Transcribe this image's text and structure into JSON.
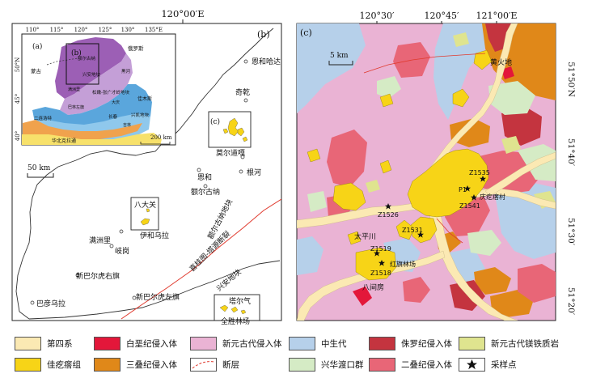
{
  "panel_b": {
    "panel_label": "(b)",
    "top_lon": "120°00′E",
    "scale_label": "50 km",
    "places": [
      "恩和哈达",
      "奇乾",
      "莫尔道嘎",
      "恩和",
      "根河",
      "额尔古纳",
      "八大关",
      "伊和乌拉",
      "满洲里",
      "岐岗",
      "新巴尔虎右旗",
      "新巴尔虎左旗",
      "巴彦乌拉",
      "塔尔气",
      "全胜林场"
    ],
    "c_box_label": "(c)",
    "blocks": [
      "额尔古纳地块",
      "兴安地块"
    ],
    "fault_name": "喜桂图-塔源断裂"
  },
  "inset_a": {
    "panel_label": "(a)",
    "b_box_label": "(b)",
    "top_ticks": [
      "110°",
      "115°",
      "120°",
      "125°",
      "130°",
      "135°E"
    ],
    "left_ticks": [
      "50°N",
      "45°",
      "40°"
    ],
    "regions": [
      "俄罗斯",
      "蒙古",
      "额尔古纳",
      "兴安地块",
      "松嫩-张广才岭地块",
      "佳木斯",
      "兴凯地块",
      "华北克拉通",
      "黑河",
      "满洲里",
      "二连浩特",
      "大庆",
      "长春",
      "巴林左旗",
      "吉林"
    ],
    "scale_label": "200 km"
  },
  "panel_c": {
    "panel_label": "(c)",
    "top_ticks": [
      "120°30′",
      "120°45′",
      "121°00′E"
    ],
    "right_ticks": [
      "51°50′N",
      "51°40′",
      "51°30′",
      "51°20′"
    ],
    "scale_label": "5 km",
    "places": [
      "黄火地",
      "太平川",
      "八间房",
      "红旗林场",
      "庆疙瘩村"
    ],
    "samples": [
      "Z1535",
      "P1",
      "Z1541",
      "Z1526",
      "Z1531",
      "Z1519",
      "Z1518"
    ]
  },
  "legend": [
    {
      "label": "第四系",
      "color": "#fbe9b3",
      "symbol": "fill"
    },
    {
      "label": "白垩纪侵入体",
      "color": "#e3173a",
      "symbol": "fill"
    },
    {
      "label": "新元古代侵入体",
      "color": "#eab3d4",
      "symbol": "fill"
    },
    {
      "label": "中生代",
      "color": "#b6d0ea",
      "symbol": "fill"
    },
    {
      "label": "侏罗纪侵入体",
      "color": "#c4343f",
      "symbol": "fill"
    },
    {
      "label": "新元古代镁铁质岩",
      "color": "#dfe48f",
      "symbol": "fill"
    },
    {
      "label": "佳疙瘩组",
      "color": "#f7d417",
      "symbol": "fill"
    },
    {
      "label": "三叠纪侵入体",
      "color": "#e08819",
      "symbol": "fill"
    },
    {
      "label": "断层",
      "color": "#e03a2e",
      "symbol": "fault"
    },
    {
      "label": "兴华渡口群",
      "color": "#d5ebc5",
      "symbol": "fill"
    },
    {
      "label": "二叠纪侵入体",
      "color": "#e86677",
      "symbol": "fill"
    },
    {
      "label": "采样点",
      "color": "#111111",
      "symbol": "star"
    }
  ]
}
